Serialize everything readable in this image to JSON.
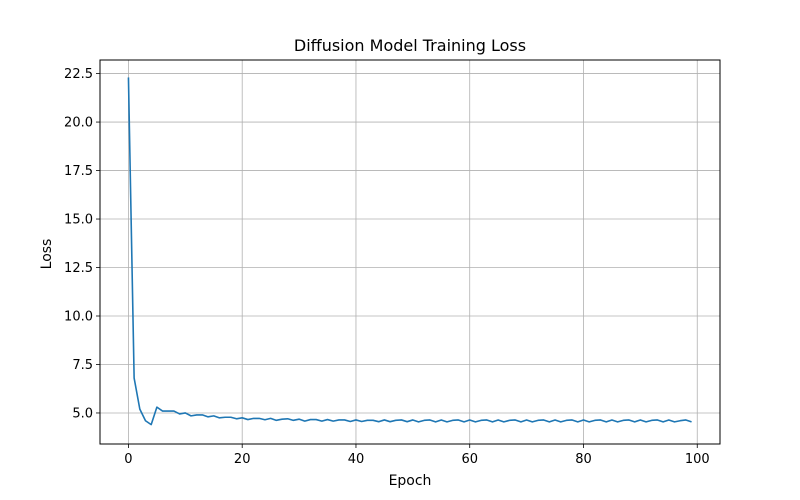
{
  "chart_data": {
    "type": "line",
    "title": "Diffusion Model Training Loss",
    "xlabel": "Epoch",
    "ylabel": "Loss",
    "xlim": [
      -5,
      104
    ],
    "ylim": [
      3.4,
      23.2
    ],
    "xticks": [
      0,
      20,
      40,
      60,
      80,
      100
    ],
    "yticks": [
      5.0,
      7.5,
      10.0,
      12.5,
      15.0,
      17.5,
      20.0,
      22.5
    ],
    "xtick_labels": [
      "0",
      "20",
      "40",
      "60",
      "80",
      "100"
    ],
    "ytick_labels": [
      "5.0",
      "7.5",
      "10.0",
      "12.5",
      "15.0",
      "17.5",
      "20.0",
      "22.5"
    ],
    "grid": true,
    "line_color": "#1f77b4",
    "series": [
      {
        "values": [
          22.3,
          6.8,
          5.2,
          4.6,
          4.4,
          5.3,
          5.1,
          5.1,
          5.1,
          4.95,
          5.0,
          4.85,
          4.9,
          4.9,
          4.8,
          4.85,
          4.75,
          4.78,
          4.78,
          4.7,
          4.75,
          4.66,
          4.72,
          4.72,
          4.65,
          4.72,
          4.62,
          4.68,
          4.7,
          4.62,
          4.68,
          4.58,
          4.66,
          4.66,
          4.58,
          4.66,
          4.58,
          4.64,
          4.64,
          4.56,
          4.64,
          4.56,
          4.62,
          4.62,
          4.55,
          4.64,
          4.55,
          4.62,
          4.64,
          4.55,
          4.64,
          4.54,
          4.62,
          4.64,
          4.54,
          4.64,
          4.54,
          4.62,
          4.64,
          4.54,
          4.64,
          4.54,
          4.62,
          4.64,
          4.54,
          4.64,
          4.54,
          4.62,
          4.64,
          4.54,
          4.64,
          4.54,
          4.62,
          4.64,
          4.54,
          4.64,
          4.54,
          4.62,
          4.64,
          4.54,
          4.64,
          4.54,
          4.62,
          4.64,
          4.54,
          4.64,
          4.54,
          4.62,
          4.64,
          4.54,
          4.64,
          4.54,
          4.62,
          4.64,
          4.54,
          4.64,
          4.54,
          4.6,
          4.64,
          4.54
        ]
      }
    ]
  }
}
